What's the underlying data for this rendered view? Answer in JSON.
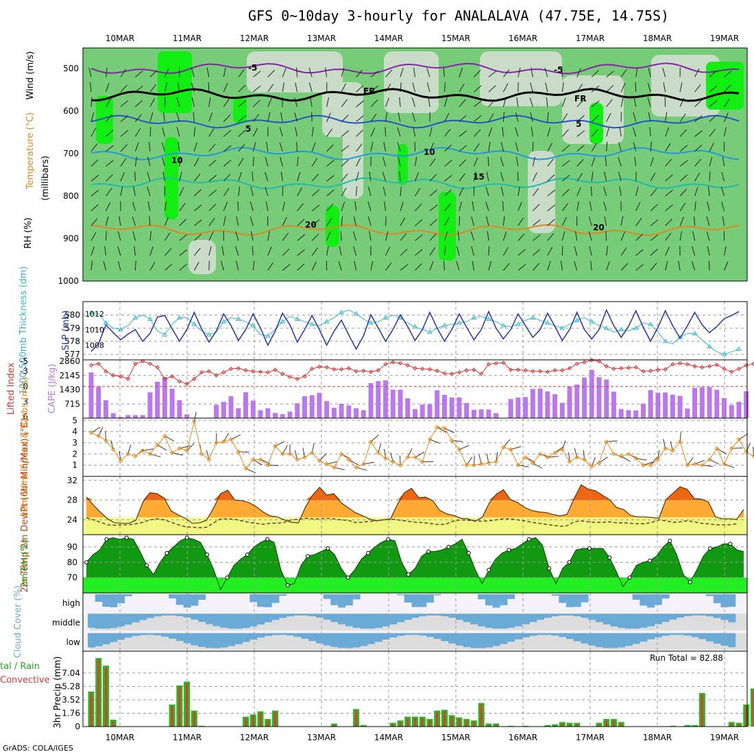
{
  "title": "GFS 0~10day 3-hourly for ANALALAVA (47.75E, 14.75S)",
  "footer": "GrADS: COLA/IGES",
  "dates": [
    "10MAR",
    "11MAR",
    "12MAR",
    "13MAR",
    "14MAR",
    "15MAR",
    "16MAR",
    "17MAR",
    "18MAR",
    "19MAR"
  ],
  "colors": {
    "green_rh": "#33cc33",
    "purple_bar": "#bb77ee",
    "blue_slp": "#2233bb",
    "cyan_thk": "#33bbcc",
    "orange_wind": "#ee8811",
    "red_li": "#dd3333",
    "cloud_blue": "#6aaad6"
  },
  "chart_data": [
    {
      "type": "heatmap",
      "panel": "upper-air cross section",
      "axis_label": "(millibars)",
      "y_ticks": [
        500,
        600,
        700,
        800,
        900,
        1000
      ],
      "legend_labels": {
        "rh": "RH (%)",
        "temperature": "Temperature (°C)",
        "wind": "Wind (m/s)"
      },
      "isotherm_labels": [
        "-5",
        "FR",
        "5",
        "10",
        "15",
        "20"
      ],
      "isotherm_label_texts": [
        {
          "text": "-5",
          "x": "10MAR 21Z approx"
        },
        {
          "text": "FR",
          "x": "13MAR"
        },
        {
          "text": "5",
          "x": "11MAR 18Z"
        },
        {
          "text": "10",
          "x": "10MAR 18Z"
        },
        {
          "text": "15",
          "x": "15MAR 06Z"
        },
        {
          "text": "20",
          "x": "12MAR 15Z"
        }
      ],
      "isotherm_levels_mb": {
        "-5": 500,
        "FR": 562,
        "5": 625,
        "10": 700,
        "15": 770,
        "20": 880
      }
    },
    {
      "type": "line",
      "panel": "thickness and SLP",
      "ylabel_left": "1000-500mb Thickness (dm)",
      "ylabel_right": "SLP (mb)",
      "left_ticks": [
        577,
        578,
        579,
        580
      ],
      "right_ticks": [
        1008,
        1010,
        1012
      ],
      "series": [
        {
          "name": "1000-500mb Thickness (dm)",
          "values": [
            580.2,
            580.1,
            579.4,
            579.0,
            578.9,
            579.2,
            579.8,
            580.0,
            579.7,
            578.8,
            578.5,
            579.3,
            579.8,
            579.8,
            579.3,
            578.8,
            578.5,
            578.7,
            579.5,
            579.8,
            579.7,
            579.5,
            579.2,
            578.5,
            578.4,
            578.9,
            579.5,
            579.9,
            579.7,
            579.5,
            579.3,
            579.2,
            579.5,
            579.8,
            580.2,
            580.4,
            580.1,
            579.7,
            579.4,
            579.5,
            579.8,
            580.0,
            579.8,
            579.4,
            579.1,
            578.9,
            578.7,
            579.0,
            579.2,
            579.3,
            579.4,
            579.5,
            579.8,
            579.9,
            579.7,
            579.5,
            579.2,
            579.1,
            579.3,
            579.6,
            579.8,
            579.6,
            579.4,
            579.2,
            579.0,
            579.3,
            579.6,
            579.8,
            579.5,
            579.2,
            579.0,
            578.7,
            578.9,
            578.8,
            579.0,
            579.4,
            579.3,
            578.7,
            578.0,
            577.8,
            578.3,
            578.6,
            578.6,
            578.1,
            577.6,
            577.2,
            577.0,
            577.2,
            577.4
          ]
        },
        {
          "name": "SLP (mb)",
          "values": [
            1007.2,
            1008.2,
            1010.6,
            1009.6,
            1008.7,
            1009.4,
            1010.0,
            1008.5,
            1009.5,
            1011.6,
            1011.8,
            1010.1,
            1008.5,
            1010.0,
            1012.2,
            1010.1,
            1008.4,
            1009.8,
            1012.0,
            1010.5,
            1008.6,
            1010.0,
            1012.0,
            1010.2,
            1008.0,
            1009.8,
            1012.1,
            1010.6,
            1008.4,
            1010.0,
            1011.8,
            1010.0,
            1008.0,
            1009.8,
            1011.2,
            1009.3,
            1007.5,
            1009.2,
            1011.9,
            1010.2,
            1008.5,
            1010.0,
            1011.9,
            1010.4,
            1008.6,
            1010.0,
            1012.2,
            1010.2,
            1008.5,
            1010.0,
            1012.0,
            1010.3,
            1008.7,
            1010.0,
            1012.3,
            1010.2,
            1008.8,
            1010.0,
            1012.0,
            1010.5,
            1009.0,
            1010.0,
            1012.1,
            1010.4,
            1008.6,
            1010.0,
            1012.2,
            1010.0,
            1008.8,
            1010.0,
            1012.5,
            1010.5,
            1009.0,
            1010.4,
            1012.4,
            1010.3,
            1008.5,
            1010.3,
            1012.4,
            1010.5,
            1008.9,
            1010.5,
            1012.2,
            1010.6,
            1009.6,
            1010.4,
            1011.4,
            1011.8,
            1012.3
          ]
        }
      ]
    },
    {
      "type": "bar",
      "panel": "lifted index and CAPE",
      "ylabel_left": "Lifted Index",
      "ylabel_right": "CAPE (J/kg)",
      "left_ticks": [
        -5,
        -3,
        0,
        3,
        6
      ],
      "right_ticks": [
        715,
        1430,
        2145,
        2860
      ],
      "series": [
        {
          "name": "CAPE (J/kg)",
          "values": [
            2300,
            1600,
            900,
            250,
            60,
            150,
            150,
            150,
            1300,
            1830,
            2060,
            1480,
            900,
            190,
            20,
            0,
            20,
            670,
            820,
            1100,
            500,
            1300,
            880,
            400,
            500,
            260,
            200,
            330,
            750,
            1100,
            1150,
            1270,
            860,
            520,
            720,
            640,
            500,
            400,
            1760,
            1860,
            1900,
            1430,
            1430,
            1000,
            450,
            680,
            700,
            1400,
            1170,
            1040,
            1040,
            760,
            420,
            440,
            430,
            250,
            0,
            960,
            1030,
            1060,
            1470,
            1490,
            1340,
            1200,
            770,
            1590,
            1690,
            2040,
            2430,
            2060,
            1940,
            1330,
            460,
            400,
            390,
            730,
            1410,
            1280,
            1290,
            1180,
            1120,
            480,
            1520,
            1560,
            1560,
            1430,
            1010,
            660,
            820,
            1350
          ]
        },
        {
          "name": "Lifted Index",
          "values": [
            -4.2,
            -4.5,
            -3.0,
            -2.2,
            -2.0,
            -1.5,
            -4.5,
            -5.0,
            -4.5,
            -3.8,
            -1.5,
            -2.0,
            -1.0,
            -0.5,
            -1.5,
            -2.8,
            -3.0,
            -2.2,
            -2.8,
            -3.5,
            -3.6,
            -3.2,
            -3.0,
            -2.9,
            -2.8,
            -3.3,
            -2.5,
            -1.9,
            -1.5,
            -2.0,
            -3.5,
            -3.9,
            -3.8,
            -3.4,
            -3.4,
            -3.6,
            -3.0,
            -3.1,
            -2.9,
            -3.2,
            -4.4,
            -4.8,
            -4.6,
            -4.2,
            -3.6,
            -3.5,
            -3.4,
            -3.1,
            -2.6,
            -2.5,
            -2.8,
            -3.2,
            -3.3,
            -2.5,
            -4.4,
            -4.6,
            -4.7,
            -3.3,
            -3.3,
            -3.2,
            -3.0,
            -3.0,
            -2.9,
            -3.2,
            -3.2,
            -3.6,
            -4.5,
            -4.8,
            -5.2,
            -5.0,
            -4.0,
            -3.5,
            -3.6,
            -3.7,
            -3.8,
            -3.0,
            -3.1,
            -3.3,
            -3.4,
            -4.4,
            -4.6,
            -4.4,
            -4.0,
            -3.8,
            -4.0,
            -4.3,
            -3.5,
            -2.9,
            -3.5,
            -4.2,
            -4.5
          ]
        }
      ]
    },
    {
      "type": "line",
      "panel": "10m wind",
      "ylabel": "10m Wind Speed & Barbs (m/s)",
      "y_ticks": [
        1,
        2,
        3,
        4,
        5
      ],
      "series": [
        {
          "name": "10m Wind Speed",
          "values": [
            3.9,
            3.6,
            3.2,
            2.4,
            1.4,
            2.0,
            1.8,
            2.3,
            2.0,
            2.8,
            3.6,
            2.1,
            2.5,
            2.3,
            4.9,
            2.0,
            1.5,
            3.0,
            3.1,
            3.3,
            2.2,
            0.7,
            1.5,
            1.5,
            1.0,
            2.7,
            2.0,
            2.0,
            1.5,
            1.7,
            2.1,
            1.4,
            1.1,
            0.8,
            2.0,
            1.5,
            0.8,
            1.1,
            3.1,
            2.1,
            1.6,
            1.3,
            1.0,
            1.7,
            1.7,
            1.3,
            3.3,
            4.4,
            4.3,
            3.2,
            2.4,
            1.0,
            1.0,
            1.1,
            1.2,
            1.3,
            2.6,
            2.4,
            1.0,
            1.7,
            1.2,
            2.0,
            1.7,
            2.1,
            2.4,
            1.3,
            1.7,
            1.5,
            0.9,
            1.2,
            3.1,
            2.0,
            1.8,
            2.0,
            1.6,
            1.0,
            1.0,
            1.5,
            2.5,
            2.3,
            3.1,
            1.0,
            1.1,
            1.0,
            1.5,
            2.5,
            1.1,
            2.5,
            3.3,
            2.2,
            1.8,
            0.5,
            0.9,
            2.1,
            1.4,
            2.1
          ]
        }
      ]
    },
    {
      "type": "area",
      "panel": "2m temperature and dewpoint",
      "ylabel": "2m Temp 2m DewPt (6hr Min/Max) (°C)",
      "y_ticks": [
        24,
        28,
        32
      ],
      "series": [
        {
          "name": "2m Temp",
          "values": [
            28.6,
            27.0,
            25.5,
            24.2,
            23.4,
            23.3,
            23.3,
            23.9,
            27.6,
            29.5,
            29.3,
            28.4,
            25.8,
            25.0,
            24.3,
            23.3,
            23.4,
            23.9,
            26.4,
            29.3,
            30.0,
            28.0,
            27.9,
            27.5,
            26.7,
            25.6,
            24.8,
            24.6,
            24.0,
            23.5,
            23.4,
            26.6,
            29.0,
            30.6,
            29.0,
            29.3,
            27.5,
            26.5,
            25.5,
            24.9,
            24.2,
            23.8,
            24.0,
            24.1,
            27.1,
            29.5,
            30.4,
            28.5,
            28.6,
            27.9,
            25.9,
            25.2,
            24.9,
            24.3,
            24.2,
            23.7,
            24.5,
            27.4,
            29.2,
            30.1,
            28.1,
            27.5,
            26.5,
            25.9,
            25.6,
            25.5,
            25.1,
            24.8,
            25.1,
            28.3,
            31.1,
            30.2,
            29.9,
            29.0,
            28.1,
            26.5,
            26.1,
            24.9,
            24.6,
            24.6,
            24.5,
            24.3,
            28.1,
            29.4,
            30.7,
            30.2,
            28.3,
            28.2,
            27.6,
            24.6,
            24.2,
            24.2,
            24.1,
            26.1
          ]
        },
        {
          "name": "2m DewPt",
          "values": [
            24.4,
            24.0,
            23.5,
            23.0,
            22.9,
            23.0,
            23.0,
            23.2,
            23.5,
            24.0,
            24.2,
            24.0,
            23.5,
            23.0,
            22.6,
            22.5,
            22.4,
            22.5,
            23.4,
            24.2,
            24.2,
            24.1,
            23.8,
            23.5,
            23.3,
            23.1,
            23.3,
            23.3,
            23.5,
            24.0,
            24.1,
            24.3,
            24.2,
            24.2,
            24.3,
            24.2,
            24.0,
            23.9,
            23.5,
            23.5,
            23.7,
            23.8,
            24.0,
            24.2,
            24.0,
            23.8,
            23.6,
            23.5,
            23.4,
            23.2,
            23.0,
            23.2,
            23.8,
            24.0,
            23.9,
            23.8,
            23.7,
            23.8,
            24.0,
            24.2,
            24.2,
            24.0,
            23.8,
            23.5,
            23.3,
            23.1,
            22.9,
            22.7,
            22.8,
            23.6,
            23.8,
            23.6,
            23.5,
            23.5,
            23.6,
            23.4,
            23.4,
            23.3,
            23.2,
            23.2,
            23.5,
            24.0,
            23.8,
            23.5,
            23.6,
            23.8,
            23.6,
            23.3,
            23.2,
            23.0,
            23.0,
            23.0,
            23.2
          ]
        }
      ]
    },
    {
      "type": "area",
      "panel": "2m relative humidity",
      "ylabel": "2m RH (%)",
      "y_ticks": [
        70,
        80,
        90
      ],
      "series": [
        {
          "name": "2m RH",
          "values": [
            80,
            85,
            88,
            95,
            96,
            95,
            96,
            95,
            87,
            78,
            72,
            80,
            86,
            90,
            94,
            96,
            95,
            93,
            85,
            75,
            62,
            70,
            78,
            82,
            85,
            90,
            93,
            95,
            93,
            75,
            65,
            66,
            78,
            84,
            85,
            87,
            89,
            85,
            76,
            70,
            75,
            82,
            86,
            90,
            93,
            95,
            94,
            80,
            72,
            76,
            84,
            87,
            87,
            88,
            90,
            92,
            95,
            86,
            75,
            66,
            75,
            82,
            86,
            88,
            89,
            92,
            95,
            96,
            91,
            76,
            66,
            76,
            80,
            88,
            89,
            89,
            89,
            89,
            83,
            74,
            64,
            70,
            78,
            80,
            81,
            84,
            90,
            94,
            85,
            72,
            67,
            75,
            84,
            89,
            90,
            92,
            92,
            88,
            87
          ]
        }
      ]
    },
    {
      "type": "heatmap",
      "panel": "cloud cover",
      "ylabel": "Cloud Cover (%)",
      "rows": [
        "high",
        "middle",
        "low"
      ]
    },
    {
      "type": "bar",
      "panel": "precipitation",
      "ylabel": "3hr Precip (mm)",
      "legend_left": [
        "tal / Rain",
        "Convective"
      ],
      "annotation": "Run Total = 82.88",
      "y_ticks": [
        0,
        1.76,
        3.52,
        5.28,
        7.04
      ],
      "series": [
        {
          "name": "3hr Precip",
          "values": [
            4.6,
            9.0,
            8.0,
            0.9,
            0,
            0,
            0,
            0,
            0,
            0,
            0,
            2.9,
            5.4,
            5.9,
            2.1,
            0.1,
            0,
            0,
            0,
            0,
            0,
            1.3,
            1.6,
            2.0,
            1.0,
            2.1,
            0,
            0,
            0,
            0,
            0,
            0,
            0,
            0.4,
            0,
            0,
            2.3,
            0.2,
            0,
            0,
            0,
            0.5,
            0.8,
            1.3,
            1.3,
            1.3,
            1.0,
            2.1,
            2.2,
            1.5,
            1.2,
            1.0,
            0.8,
            3.1,
            0.4,
            0.4,
            0,
            0.1,
            0,
            0.1,
            0,
            0,
            0.2,
            0.3,
            0.6,
            0.5,
            0.5,
            0,
            0,
            0.5,
            1.0,
            1.0,
            0.6,
            0,
            0,
            0,
            0,
            0,
            0,
            0.1,
            0,
            0.2,
            0.2,
            4.4,
            0,
            0,
            0,
            0.6,
            0.5,
            2.9,
            5.0,
            1.5,
            0.4,
            1.2
          ]
        }
      ]
    }
  ]
}
